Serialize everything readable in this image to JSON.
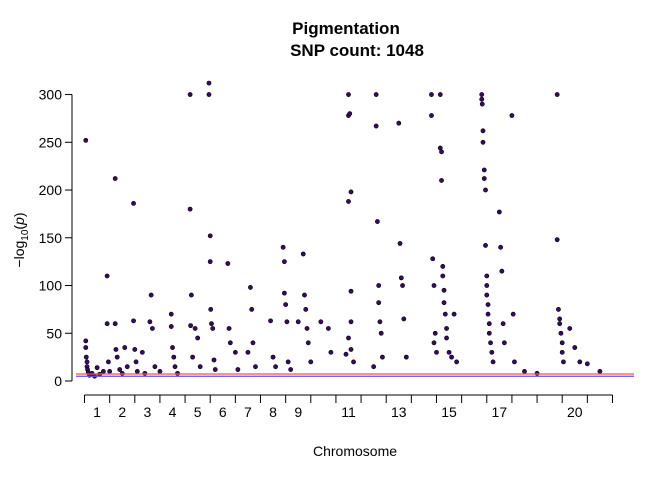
{
  "chart_data": {
    "type": "scatter",
    "title": "Pigmentation",
    "subtitle": "SNP count: 1048",
    "xlabel": "Chromosome",
    "ylabel_text": "−log",
    "ylabel_sub": "10",
    "ylabel_var": "p",
    "ylim": [
      0,
      310
    ],
    "y_ticks": [
      0,
      50,
      100,
      150,
      200,
      250,
      300
    ],
    "chromosome_labels": [
      "1",
      "2",
      "3",
      "4",
      "5",
      "6",
      "7",
      "8",
      "9",
      "11",
      "13",
      "15",
      "17",
      "20"
    ],
    "chromosome_label_positions": [
      1,
      2,
      3,
      4,
      5,
      6,
      7,
      8,
      9,
      11,
      13,
      15,
      17,
      20
    ],
    "chromosome_boundaries": [
      0.5,
      1.5,
      2.5,
      3.5,
      4.5,
      5.5,
      6.5,
      7.5,
      8.5,
      9.5,
      10.5,
      11.5,
      12.5,
      13.5,
      14.5,
      15.5,
      16.5,
      17.5,
      18.5,
      19.5,
      20.5,
      21.5
    ],
    "significance_thresholds": [
      {
        "value": 7.3,
        "color": "#ff4d4d"
      },
      {
        "value": 5.0,
        "color": "#5555ff"
      }
    ],
    "point_color": "#3a0a63",
    "points": [
      [
        0.55,
        252
      ],
      [
        0.55,
        42
      ],
      [
        0.55,
        35
      ],
      [
        0.57,
        25
      ],
      [
        0.6,
        20
      ],
      [
        0.6,
        15
      ],
      [
        0.62,
        12
      ],
      [
        0.65,
        9
      ],
      [
        0.7,
        6
      ],
      [
        0.8,
        8
      ],
      [
        0.9,
        5
      ],
      [
        1.0,
        14
      ],
      [
        1.1,
        7
      ],
      [
        1.25,
        10
      ],
      [
        1.4,
        110
      ],
      [
        1.4,
        60
      ],
      [
        1.45,
        20
      ],
      [
        1.5,
        10
      ],
      [
        1.72,
        212
      ],
      [
        1.72,
        60
      ],
      [
        1.75,
        33
      ],
      [
        1.8,
        25
      ],
      [
        1.9,
        12
      ],
      [
        2.0,
        8
      ],
      [
        2.1,
        35
      ],
      [
        2.2,
        15
      ],
      [
        2.45,
        186
      ],
      [
        2.45,
        63
      ],
      [
        2.5,
        33
      ],
      [
        2.55,
        20
      ],
      [
        2.6,
        10
      ],
      [
        2.8,
        30
      ],
      [
        2.9,
        8
      ],
      [
        3.1,
        62
      ],
      [
        3.15,
        90
      ],
      [
        3.2,
        55
      ],
      [
        3.3,
        15
      ],
      [
        3.5,
        10
      ],
      [
        3.95,
        70
      ],
      [
        3.95,
        57
      ],
      [
        4.0,
        35
      ],
      [
        4.05,
        25
      ],
      [
        4.1,
        15
      ],
      [
        4.2,
        8
      ],
      [
        4.7,
        300
      ],
      [
        4.7,
        180
      ],
      [
        4.72,
        58
      ],
      [
        4.75,
        90
      ],
      [
        4.8,
        25
      ],
      [
        4.9,
        55
      ],
      [
        5.0,
        45
      ],
      [
        5.1,
        15
      ],
      [
        5.45,
        312
      ],
      [
        5.45,
        300
      ],
      [
        5.5,
        152
      ],
      [
        5.5,
        125
      ],
      [
        5.52,
        75
      ],
      [
        5.55,
        60
      ],
      [
        5.6,
        55
      ],
      [
        5.65,
        22
      ],
      [
        5.7,
        12
      ],
      [
        6.2,
        123
      ],
      [
        6.25,
        55
      ],
      [
        6.3,
        40
      ],
      [
        6.5,
        30
      ],
      [
        6.6,
        12
      ],
      [
        7.1,
        98
      ],
      [
        7.15,
        75
      ],
      [
        7.2,
        40
      ],
      [
        7.0,
        30
      ],
      [
        7.3,
        15
      ],
      [
        7.9,
        63
      ],
      [
        8.0,
        25
      ],
      [
        8.1,
        15
      ],
      [
        8.4,
        140
      ],
      [
        8.45,
        125
      ],
      [
        8.45,
        92
      ],
      [
        8.5,
        80
      ],
      [
        8.55,
        62
      ],
      [
        8.6,
        20
      ],
      [
        8.7,
        12
      ],
      [
        9.0,
        62
      ],
      [
        9.2,
        133
      ],
      [
        9.25,
        90
      ],
      [
        9.3,
        75
      ],
      [
        9.35,
        55
      ],
      [
        9.4,
        40
      ],
      [
        9.5,
        20
      ],
      [
        9.9,
        62
      ],
      [
        10.2,
        55
      ],
      [
        10.3,
        30
      ],
      [
        11.0,
        300
      ],
      [
        11.0,
        278
      ],
      [
        11.05,
        280
      ],
      [
        11.1,
        198
      ],
      [
        11.0,
        188
      ],
      [
        11.1,
        94
      ],
      [
        11.1,
        62
      ],
      [
        11.0,
        45
      ],
      [
        11.1,
        33
      ],
      [
        10.9,
        28
      ],
      [
        11.2,
        20
      ],
      [
        12.1,
        300
      ],
      [
        12.1,
        267
      ],
      [
        12.15,
        167
      ],
      [
        12.2,
        100
      ],
      [
        12.2,
        82
      ],
      [
        12.25,
        62
      ],
      [
        12.3,
        50
      ],
      [
        12.35,
        25
      ],
      [
        12.0,
        15
      ],
      [
        13.0,
        270
      ],
      [
        13.05,
        144
      ],
      [
        13.1,
        108
      ],
      [
        13.15,
        100
      ],
      [
        13.2,
        65
      ],
      [
        13.3,
        25
      ],
      [
        14.3,
        300
      ],
      [
        14.3,
        278
      ],
      [
        14.35,
        128
      ],
      [
        14.4,
        100
      ],
      [
        14.45,
        50
      ],
      [
        14.4,
        40
      ],
      [
        14.5,
        30
      ],
      [
        14.65,
        300
      ],
      [
        14.65,
        244
      ],
      [
        14.7,
        240
      ],
      [
        14.7,
        210
      ],
      [
        14.75,
        120
      ],
      [
        14.75,
        110
      ],
      [
        14.8,
        95
      ],
      [
        14.8,
        82
      ],
      [
        14.85,
        70
      ],
      [
        14.9,
        55
      ],
      [
        14.9,
        45
      ],
      [
        15.0,
        30
      ],
      [
        15.1,
        25
      ],
      [
        15.2,
        70
      ],
      [
        15.3,
        20
      ],
      [
        16.3,
        300
      ],
      [
        16.3,
        295
      ],
      [
        16.32,
        290
      ],
      [
        16.35,
        262
      ],
      [
        16.35,
        250
      ],
      [
        16.4,
        221
      ],
      [
        16.4,
        212
      ],
      [
        16.45,
        200
      ],
      [
        16.45,
        142
      ],
      [
        16.5,
        110
      ],
      [
        16.5,
        100
      ],
      [
        16.5,
        90
      ],
      [
        16.55,
        80
      ],
      [
        16.55,
        70
      ],
      [
        16.6,
        60
      ],
      [
        16.6,
        50
      ],
      [
        16.65,
        40
      ],
      [
        16.7,
        30
      ],
      [
        16.75,
        20
      ],
      [
        17.0,
        177
      ],
      [
        17.05,
        140
      ],
      [
        17.1,
        115
      ],
      [
        17.15,
        60
      ],
      [
        17.2,
        40
      ],
      [
        17.5,
        278
      ],
      [
        17.55,
        70
      ],
      [
        17.6,
        20
      ],
      [
        18.0,
        10
      ],
      [
        18.5,
        8
      ],
      [
        19.3,
        300
      ],
      [
        19.3,
        148
      ],
      [
        19.35,
        75
      ],
      [
        19.4,
        65
      ],
      [
        19.4,
        60
      ],
      [
        19.45,
        50
      ],
      [
        19.5,
        40
      ],
      [
        19.5,
        30
      ],
      [
        19.55,
        20
      ],
      [
        19.8,
        55
      ],
      [
        20.0,
        35
      ],
      [
        20.2,
        20
      ],
      [
        20.5,
        18
      ],
      [
        21.0,
        10
      ]
    ]
  }
}
